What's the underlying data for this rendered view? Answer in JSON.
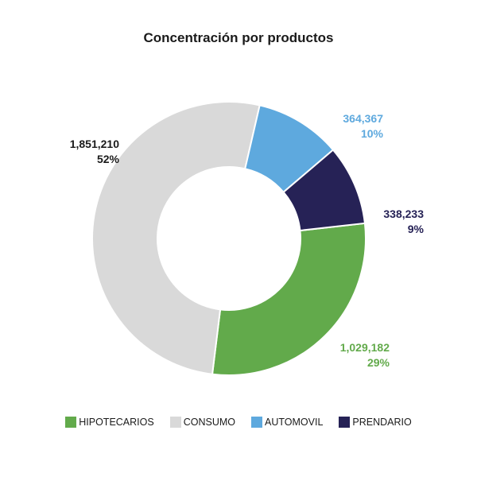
{
  "chart_data": {
    "type": "pie",
    "variant": "donut",
    "title": "Concentración por productos",
    "slices": [
      {
        "name": "HIPOTECARIOS",
        "value": 1029182,
        "value_label": "1,029,182",
        "pct_label": "29%",
        "color": "#62AA4B"
      },
      {
        "name": "CONSUMO",
        "value": 1851210,
        "value_label": "1,851,210",
        "pct_label": "52%",
        "color": "#D9D9D9"
      },
      {
        "name": "AUTOMOVIL",
        "value": 364367,
        "value_label": "364,367",
        "pct_label": "10%",
        "color": "#5EA9DE"
      },
      {
        "name": "PRENDARIO",
        "value": 338233,
        "value_label": "338,233",
        "pct_label": "9%",
        "color": "#262256"
      }
    ],
    "label_colors": {
      "HIPOTECARIOS": "#62AA4B",
      "CONSUMO": "#1a1a1a",
      "AUTOMOVIL": "#5EA9DE",
      "PRENDARIO": "#262256"
    },
    "legend_position": "bottom"
  }
}
